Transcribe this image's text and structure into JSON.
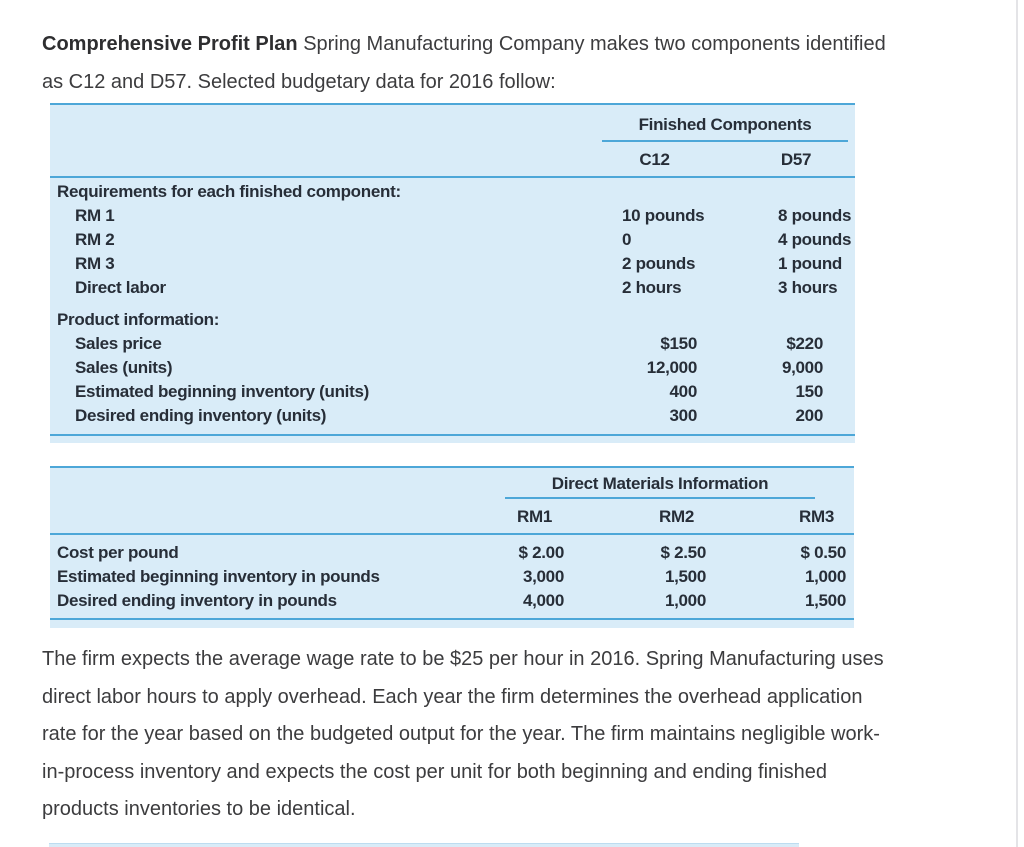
{
  "intro": {
    "lead": "Comprehensive Profit Plan",
    "lines": [
      "Spring Manufacturing Company makes two components identified",
      "as C12 and D57. Selected budgetary data for 2016 follow:"
    ]
  },
  "table1": {
    "group_header": "Finished Components",
    "columns": [
      "C12",
      "D57"
    ],
    "sections": [
      {
        "header": "Requirements for each finished component:",
        "rows": [
          {
            "label": "RM 1",
            "values": [
              "10 pounds",
              "8 pounds"
            ]
          },
          {
            "label": "RM 2",
            "values": [
              "0",
              "4 pounds"
            ]
          },
          {
            "label": "RM 3",
            "values": [
              "2 pounds",
              "1 pound"
            ]
          },
          {
            "label": "Direct labor",
            "values": [
              "2 hours",
              "3 hours"
            ]
          }
        ]
      },
      {
        "header": "Product information:",
        "rows": [
          {
            "label": "Sales price",
            "values": [
              "$150",
              "$220"
            ]
          },
          {
            "label": "Sales (units)",
            "values": [
              "12,000",
              "9,000"
            ]
          },
          {
            "label": "Estimated beginning inventory (units)",
            "values": [
              "400",
              "150"
            ]
          },
          {
            "label": "Desired ending inventory (units)",
            "values": [
              "300",
              "200"
            ]
          }
        ]
      }
    ]
  },
  "table2": {
    "group_header": "Direct Materials Information",
    "columns": [
      "RM1",
      "RM2",
      "RM3"
    ],
    "rows": [
      {
        "label": "Cost per pound",
        "values": [
          "$ 2.00",
          "$ 2.50",
          "$ 0.50"
        ]
      },
      {
        "label": "Estimated beginning inventory in pounds",
        "values": [
          "3,000",
          "1,500",
          "1,000"
        ]
      },
      {
        "label": "Desired ending inventory in pounds",
        "values": [
          "4,000",
          "1,000",
          "1,500"
        ]
      }
    ]
  },
  "closing": {
    "lines": [
      "The firm expects the average wage rate to be $25 per hour in 2016. Spring Manufacturing uses",
      "direct labor hours to apply overhead. Each year the firm determines the overhead application",
      "rate for the year based on the budgeted output for the year. The firm maintains negligible work-",
      "in-process inventory and expects the cost per unit for both beginning and ending finished",
      "products inventories to be identical."
    ]
  },
  "colors": {
    "table_background": "#d9ecf8",
    "table_rule_blue": "#4da7d8",
    "table_text": "#272e38",
    "body_text": "#3c3c3e",
    "right_divider": "#e4e4e7"
  }
}
